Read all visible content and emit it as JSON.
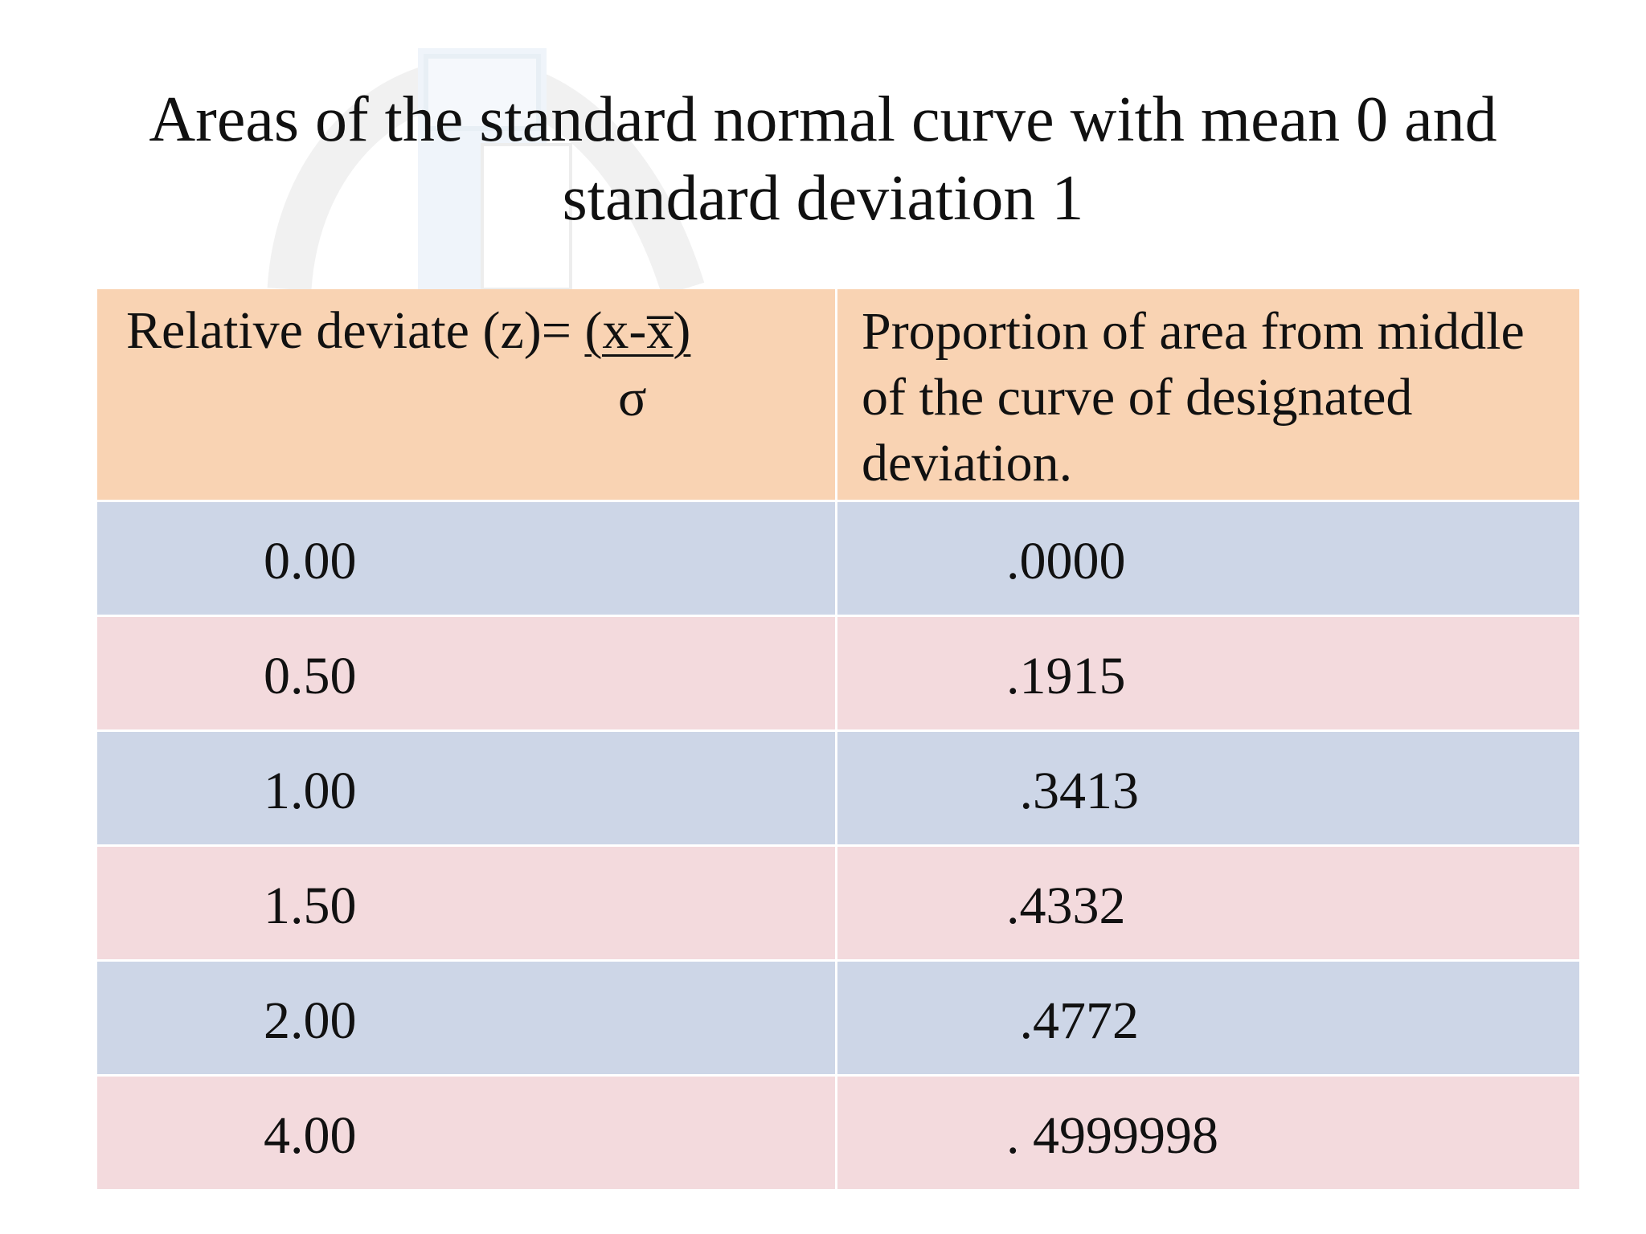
{
  "title": {
    "line1": "Areas of the standard normal curve with mean 0 and",
    "line2": "standard deviation 1"
  },
  "table": {
    "header": {
      "col1_prefix": "Relative deviate (z)= ",
      "col1_numerator": "(x-x̅)",
      "col1_denominator": "σ",
      "col2": "Proportion of area from middle of the curve of designated deviation."
    },
    "rows": [
      {
        "z": "0.00",
        "p": ".0000"
      },
      {
        "z": "0.50",
        "p": ".1915"
      },
      {
        "z": "1.00",
        "p": " .3413"
      },
      {
        "z": "1.50",
        "p": ".4332"
      },
      {
        "z": "2.00",
        "p": " .4772"
      },
      {
        "z": "4.00",
        "p": ". 4999998"
      }
    ]
  },
  "colors": {
    "header_bg": "#f9d3b3",
    "row_blue": "#cdd6e7",
    "row_pink": "#f3dadd"
  }
}
